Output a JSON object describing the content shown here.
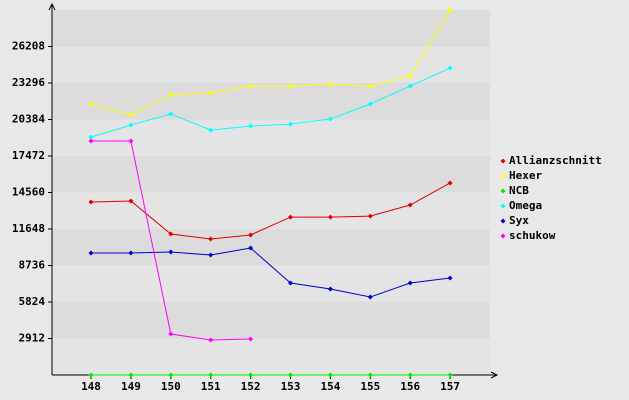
{
  "chart_data": {
    "type": "line",
    "categories": [
      "148",
      "149",
      "150",
      "151",
      "152",
      "153",
      "154",
      "155",
      "156",
      "157"
    ],
    "series": [
      {
        "name": "Allianzschnitt",
        "color": "#dd0000",
        "values": [
          13800,
          13880,
          11250,
          10850,
          11170,
          12600,
          12600,
          12680,
          13560,
          15320
        ]
      },
      {
        "name": "Hexer",
        "color": "#ffff00",
        "values": [
          21620,
          20740,
          22340,
          22500,
          23050,
          23050,
          23210,
          23050,
          23850,
          29120
        ]
      },
      {
        "name": "NCB",
        "color": "#00ee00",
        "values": [
          0,
          0,
          0,
          0,
          0,
          0,
          0,
          0,
          0,
          0
        ]
      },
      {
        "name": "Omega",
        "color": "#00ffff",
        "values": [
          18990,
          19940,
          20820,
          19540,
          19860,
          20020,
          20420,
          21620,
          23050,
          24490
        ]
      },
      {
        "name": "Syx",
        "color": "#0000cc",
        "values": [
          9730,
          9730,
          9810,
          9570,
          10130,
          7340,
          6860,
          6220,
          7340,
          7740
        ]
      },
      {
        "name": "schukow",
        "color": "#ff00ff",
        "values": [
          18670,
          18670,
          3270,
          2790,
          2870,
          null,
          null,
          null,
          null,
          null
        ]
      }
    ],
    "ylim": [
      0,
      29120
    ],
    "yticks": [
      2912,
      5824,
      8736,
      11648,
      14560,
      17472,
      20384,
      23296,
      26208
    ],
    "grid": true,
    "legend": "right"
  }
}
